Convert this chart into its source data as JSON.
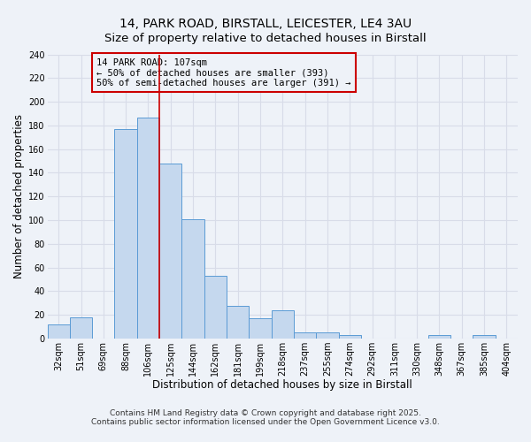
{
  "title": "14, PARK ROAD, BIRSTALL, LEICESTER, LE4 3AU",
  "subtitle": "Size of property relative to detached houses in Birstall",
  "xlabel": "Distribution of detached houses by size in Birstall",
  "ylabel": "Number of detached properties",
  "bin_labels": [
    "32sqm",
    "51sqm",
    "69sqm",
    "88sqm",
    "106sqm",
    "125sqm",
    "144sqm",
    "162sqm",
    "181sqm",
    "199sqm",
    "218sqm",
    "237sqm",
    "255sqm",
    "274sqm",
    "292sqm",
    "311sqm",
    "330sqm",
    "348sqm",
    "367sqm",
    "385sqm",
    "404sqm"
  ],
  "bar_values": [
    12,
    18,
    0,
    177,
    187,
    148,
    101,
    53,
    28,
    17,
    24,
    5,
    5,
    3,
    0,
    0,
    0,
    3,
    0,
    3,
    0
  ],
  "bar_color": "#c5d8ee",
  "bar_edge_color": "#5b9bd5",
  "vline_index": 4,
  "vline_color": "#cc0000",
  "ylim": [
    0,
    240
  ],
  "yticks": [
    0,
    20,
    40,
    60,
    80,
    100,
    120,
    140,
    160,
    180,
    200,
    220,
    240
  ],
  "annotation_title": "14 PARK ROAD: 107sqm",
  "annotation_line1": "← 50% of detached houses are smaller (393)",
  "annotation_line2": "50% of semi-detached houses are larger (391) →",
  "footer_line1": "Contains HM Land Registry data © Crown copyright and database right 2025.",
  "footer_line2": "Contains public sector information licensed under the Open Government Licence v3.0.",
  "bg_color": "#eef2f8",
  "grid_color": "#d8dce8",
  "title_fontsize": 10,
  "subtitle_fontsize": 9.5,
  "axis_label_fontsize": 8.5,
  "tick_fontsize": 7,
  "annotation_fontsize": 7.5,
  "footer_fontsize": 6.5
}
